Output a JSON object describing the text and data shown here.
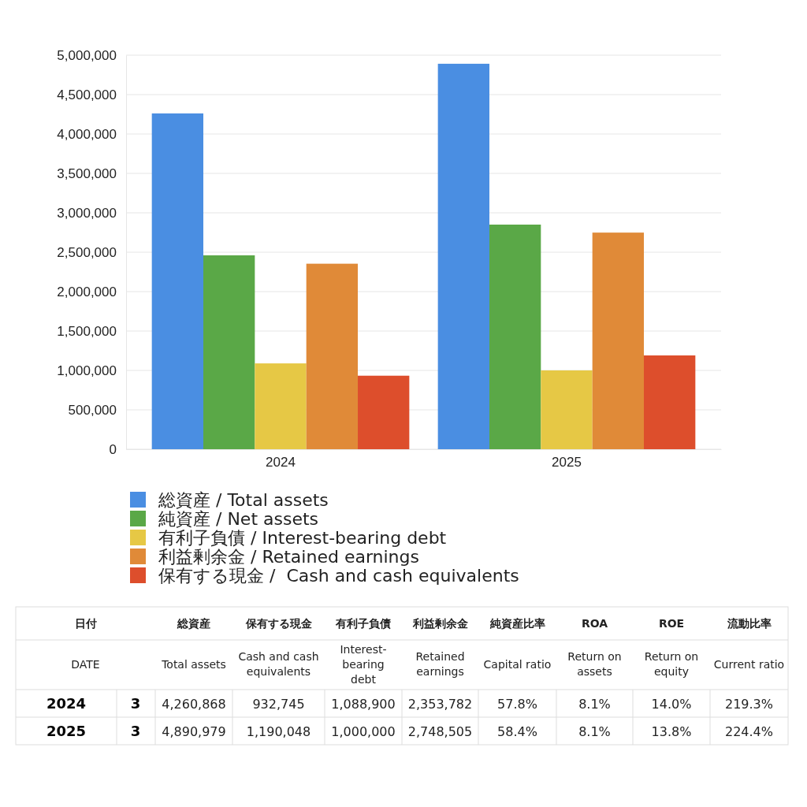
{
  "chart_data": {
    "type": "bar",
    "categories": [
      "2024",
      "2025"
    ],
    "series": [
      {
        "name": "総資産 / Total assets",
        "color": "#4a8ee2",
        "values": [
          4260868,
          4890979
        ]
      },
      {
        "name": "純資産 / Net assets",
        "color": "#5aa847",
        "values": [
          2460000,
          2850000
        ]
      },
      {
        "name": "有利子負債 / Interest-bearing debt",
        "color": "#e6c845",
        "values": [
          1088900,
          1000000
        ]
      },
      {
        "name": "利益剰余金 / Retained earnings",
        "color": "#e08a38",
        "values": [
          2353782,
          2748505
        ]
      },
      {
        "name": "保有する現金 /  Cash and cash equivalents",
        "color": "#dd4e2c",
        "values": [
          932745,
          1190048
        ]
      }
    ],
    "ylim": [
      0,
      5000000
    ],
    "yticks": [
      {
        "value": 0,
        "label": "0"
      },
      {
        "value": 500000,
        "label": "500,000"
      },
      {
        "value": 1000000,
        "label": "1,000,000"
      },
      {
        "value": 1500000,
        "label": "1,500,000"
      },
      {
        "value": 2000000,
        "label": "2,000,000"
      },
      {
        "value": 2500000,
        "label": "2,500,000"
      },
      {
        "value": 3000000,
        "label": "3,000,000"
      },
      {
        "value": 3500000,
        "label": "3,500,000"
      },
      {
        "value": 4000000,
        "label": "4,000,000"
      },
      {
        "value": 4500000,
        "label": "4,500,000"
      },
      {
        "value": 5000000,
        "label": "5,000,000"
      }
    ],
    "grid": "y",
    "legend": "bottom",
    "annotations": [
      "日付",
      "DATE",
      "総資産",
      "Total assets",
      "保有する現金",
      "Cash and cash equivalents",
      "有利子負債",
      "Interest-bearing debt",
      "利益剰余金",
      "Retained earnings",
      "純資産比率",
      "Capital ratio",
      "ROA",
      "Return on assets",
      "ROE",
      "Return on equity",
      "流動比率",
      "Current ratio",
      "3",
      "3",
      "4,260,868",
      "4,890,979",
      "932,745",
      "1,190,048",
      "1,088,900",
      "1,000,000",
      "2,353,782",
      "2,748,505",
      "57.8%",
      "58.4%",
      "8.1%",
      "8.1%",
      "14.0%",
      "13.8%",
      "219.3%",
      "224.4%"
    ]
  }
}
